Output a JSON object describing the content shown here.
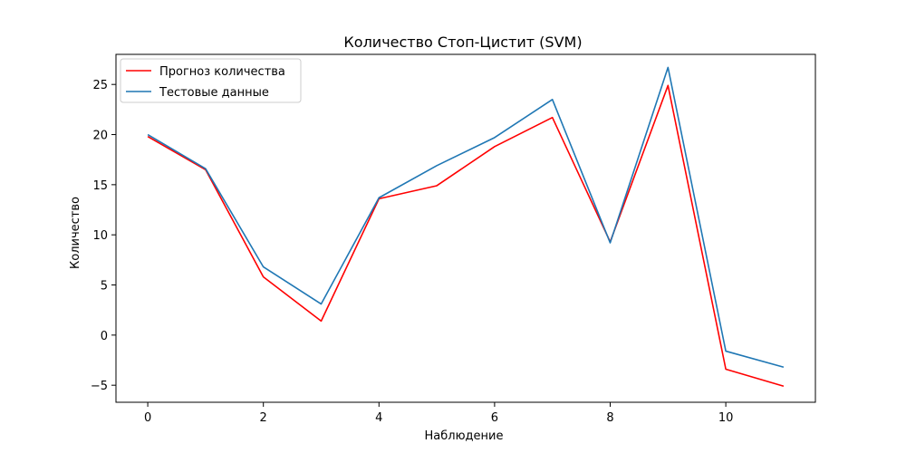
{
  "chart_data": {
    "type": "line",
    "title": "Количество Стоп-Цистит  (SVM)",
    "xlabel": "Наблюдение",
    "ylabel": "Количество",
    "x": [
      0,
      1,
      2,
      3,
      4,
      5,
      6,
      7,
      8,
      9,
      10,
      11
    ],
    "xlim": [
      -0.55,
      11.55
    ],
    "ylim": [
      -6.7,
      28.0
    ],
    "xticks": [
      0,
      2,
      4,
      6,
      8,
      10
    ],
    "yticks": [
      -5,
      0,
      5,
      10,
      15,
      20,
      25
    ],
    "ytick_labels": [
      "−5",
      "0",
      "5",
      "10",
      "15",
      "20",
      "25"
    ],
    "grid": false,
    "legend_position": "upper-left",
    "series": [
      {
        "name": "Прогноз количества",
        "color": "#ff0000",
        "values": [
          19.8,
          16.5,
          5.8,
          1.4,
          13.6,
          14.9,
          18.8,
          21.7,
          9.3,
          24.9,
          -3.4,
          -5.1
        ]
      },
      {
        "name": "Тестовые данные",
        "color": "#1f77b4",
        "values": [
          20.0,
          16.6,
          6.8,
          3.1,
          13.7,
          16.9,
          19.7,
          23.5,
          9.2,
          26.7,
          -1.6,
          -3.2
        ]
      }
    ]
  }
}
